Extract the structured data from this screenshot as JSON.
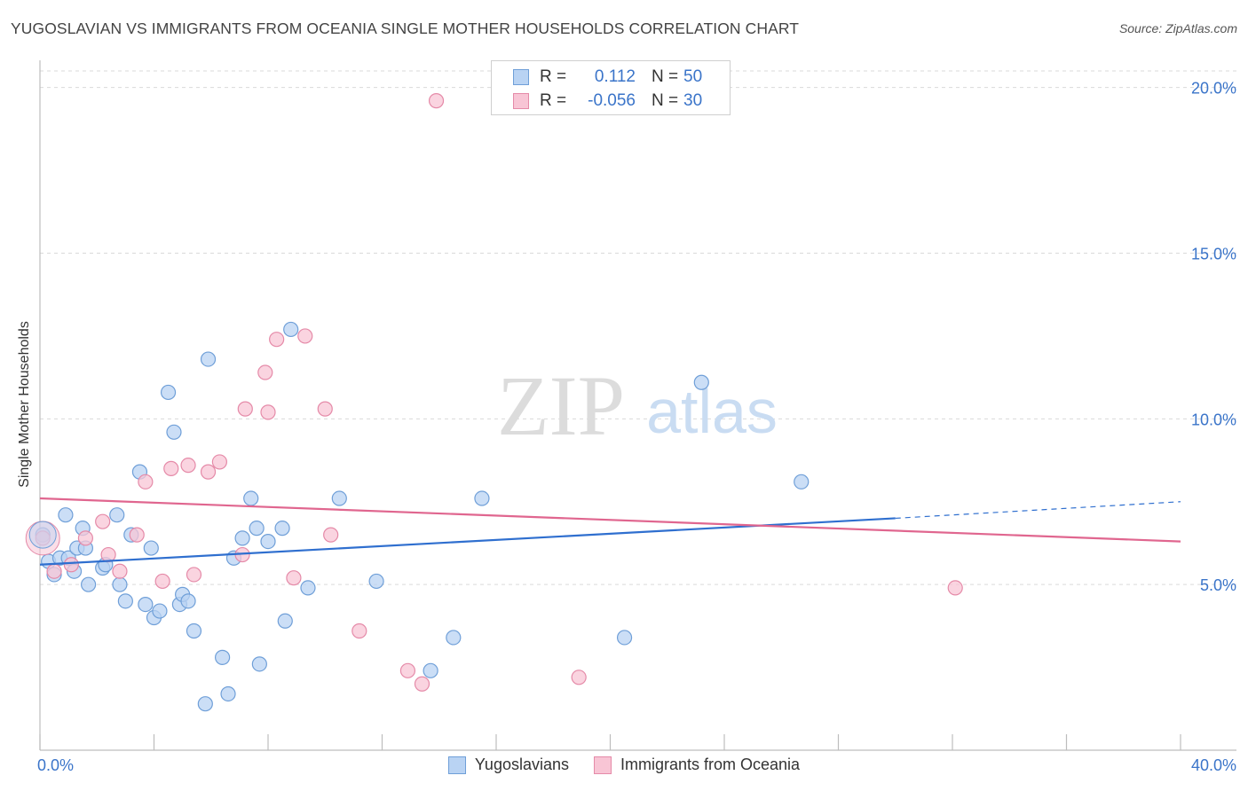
{
  "header": {
    "title": "YUGOSLAVIAN VS IMMIGRANTS FROM OCEANIA SINGLE MOTHER HOUSEHOLDS CORRELATION CHART",
    "source": "Source: ZipAtlas.com"
  },
  "watermark": {
    "zip": "ZIP",
    "atlas": "atlas"
  },
  "legend_top": [
    {
      "r_label": "R =",
      "r_value": "0.112",
      "n_label": "N =",
      "n_value": "50"
    },
    {
      "r_label": "R =",
      "r_value": "-0.056",
      "n_label": "N =",
      "n_value": "30"
    }
  ],
  "legend_bottom": [
    {
      "label": "Yugoslavians"
    },
    {
      "label": "Immigrants from Oceania"
    }
  ],
  "colors": {
    "blue_fill": "#b9d3f3",
    "blue_stroke": "#6f9fd8",
    "blue_line": "#2f6fcf",
    "pink_fill": "#f8c5d5",
    "pink_stroke": "#e58aa8",
    "pink_line": "#e0668f",
    "tick_label": "#3a74c9",
    "grid": "#d9d9d9"
  },
  "chart_data": {
    "type": "scatter",
    "title": "YUGOSLAVIAN VS IMMIGRANTS FROM OCEANIA SINGLE MOTHER HOUSEHOLDS CORRELATION CHART",
    "xlabel": "",
    "ylabel": "Single Mother Households",
    "xlim": [
      0,
      40
    ],
    "ylim": [
      0,
      20.5
    ],
    "x_tick_labels": [
      {
        "value": 0,
        "label": "0.0%"
      },
      {
        "value": 40,
        "label": "40.0%"
      }
    ],
    "y_tick_labels": [
      {
        "value": 5,
        "label": "5.0%"
      },
      {
        "value": 10,
        "label": "10.0%"
      },
      {
        "value": 15,
        "label": "15.0%"
      },
      {
        "value": 20,
        "label": "20.0%"
      }
    ],
    "series": [
      {
        "name": "Yugoslavians",
        "color": "blue",
        "points": [
          [
            0.1,
            6.5
          ],
          [
            0.3,
            5.7
          ],
          [
            0.5,
            5.3
          ],
          [
            0.7,
            5.8
          ],
          [
            0.9,
            7.1
          ],
          [
            1.0,
            5.8
          ],
          [
            1.2,
            5.4
          ],
          [
            1.3,
            6.1
          ],
          [
            1.5,
            6.7
          ],
          [
            1.6,
            6.1
          ],
          [
            1.7,
            5.0
          ],
          [
            2.2,
            5.5
          ],
          [
            2.3,
            5.6
          ],
          [
            2.7,
            7.1
          ],
          [
            2.8,
            5.0
          ],
          [
            3.0,
            4.5
          ],
          [
            3.2,
            6.5
          ],
          [
            3.5,
            8.4
          ],
          [
            3.7,
            4.4
          ],
          [
            3.9,
            6.1
          ],
          [
            4.0,
            4.0
          ],
          [
            4.2,
            4.2
          ],
          [
            4.5,
            10.8
          ],
          [
            4.7,
            9.6
          ],
          [
            4.9,
            4.4
          ],
          [
            5.0,
            4.7
          ],
          [
            5.2,
            4.5
          ],
          [
            5.4,
            3.6
          ],
          [
            5.9,
            11.8
          ],
          [
            5.8,
            1.4
          ],
          [
            6.4,
            2.8
          ],
          [
            6.6,
            1.7
          ],
          [
            6.8,
            5.8
          ],
          [
            7.1,
            6.4
          ],
          [
            7.4,
            7.6
          ],
          [
            7.6,
            6.7
          ],
          [
            7.7,
            2.6
          ],
          [
            8.0,
            6.3
          ],
          [
            8.5,
            6.7
          ],
          [
            8.6,
            3.9
          ],
          [
            8.8,
            12.7
          ],
          [
            9.4,
            4.9
          ],
          [
            10.5,
            7.6
          ],
          [
            11.8,
            5.1
          ],
          [
            13.7,
            2.4
          ],
          [
            14.5,
            3.4
          ],
          [
            15.5,
            7.6
          ],
          [
            20.5,
            3.4
          ],
          [
            23.2,
            11.1
          ],
          [
            26.7,
            8.1
          ]
        ]
      },
      {
        "name": "Immigrants from Oceania",
        "color": "pink",
        "points": [
          [
            0.1,
            6.4
          ],
          [
            0.5,
            5.4
          ],
          [
            1.1,
            5.6
          ],
          [
            1.6,
            6.4
          ],
          [
            2.2,
            6.9
          ],
          [
            2.4,
            5.9
          ],
          [
            2.8,
            5.4
          ],
          [
            3.4,
            6.5
          ],
          [
            3.7,
            8.1
          ],
          [
            4.3,
            5.1
          ],
          [
            4.6,
            8.5
          ],
          [
            5.2,
            8.6
          ],
          [
            5.4,
            5.3
          ],
          [
            5.9,
            8.4
          ],
          [
            6.3,
            8.7
          ],
          [
            7.1,
            5.9
          ],
          [
            7.2,
            10.3
          ],
          [
            7.9,
            11.4
          ],
          [
            8.0,
            10.2
          ],
          [
            8.3,
            12.4
          ],
          [
            8.9,
            5.2
          ],
          [
            9.3,
            12.5
          ],
          [
            10.0,
            10.3
          ],
          [
            10.2,
            6.5
          ],
          [
            11.2,
            3.6
          ],
          [
            12.9,
            2.4
          ],
          [
            13.4,
            2.0
          ],
          [
            13.9,
            19.6
          ],
          [
            18.9,
            2.2
          ],
          [
            32.1,
            4.9
          ]
        ]
      }
    ],
    "trend_lines": [
      {
        "name": "Yugoslavians",
        "x": [
          0,
          30
        ],
        "y": [
          5.6,
          7.0
        ],
        "dashed_extension_to_x": 40,
        "dashed_extension_y": 7.5
      },
      {
        "name": "Immigrants from Oceania",
        "x": [
          0,
          40
        ],
        "y": [
          7.6,
          6.3
        ]
      }
    ]
  }
}
